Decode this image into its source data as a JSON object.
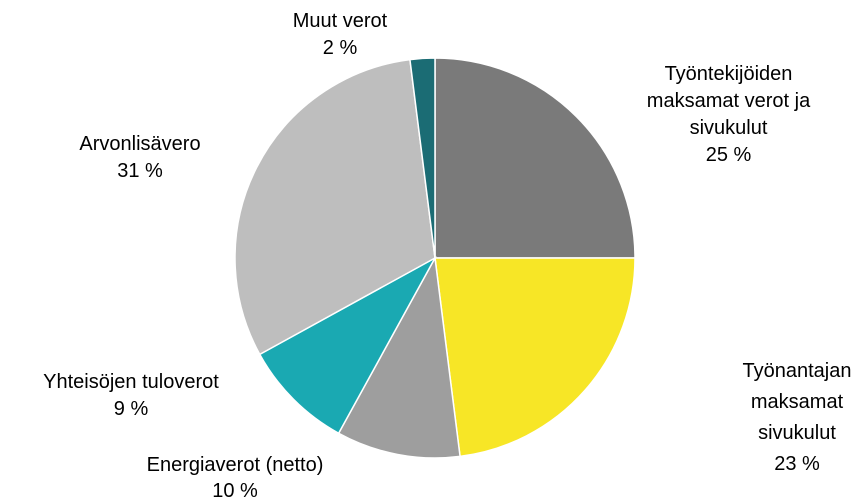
{
  "chart_data": {
    "type": "pie",
    "categories": [
      "Työntekijöiden maksamat verot ja sivukulut",
      "Työnantajan maksamat sivukulut",
      "Energiaverot (netto)",
      "Yhteisöjen tuloverot",
      "Arvonlisävero",
      "Muut verot"
    ],
    "values": [
      25,
      23,
      10,
      9,
      31,
      2
    ],
    "value_labels": [
      "25 %",
      "23 %",
      "10 %",
      "9 %",
      "31 %",
      "2 %"
    ],
    "colors": [
      "#7a7a7a",
      "#f7e626",
      "#9e9e9e",
      "#1aa9b2",
      "#bebebe",
      "#1b6c74"
    ]
  }
}
